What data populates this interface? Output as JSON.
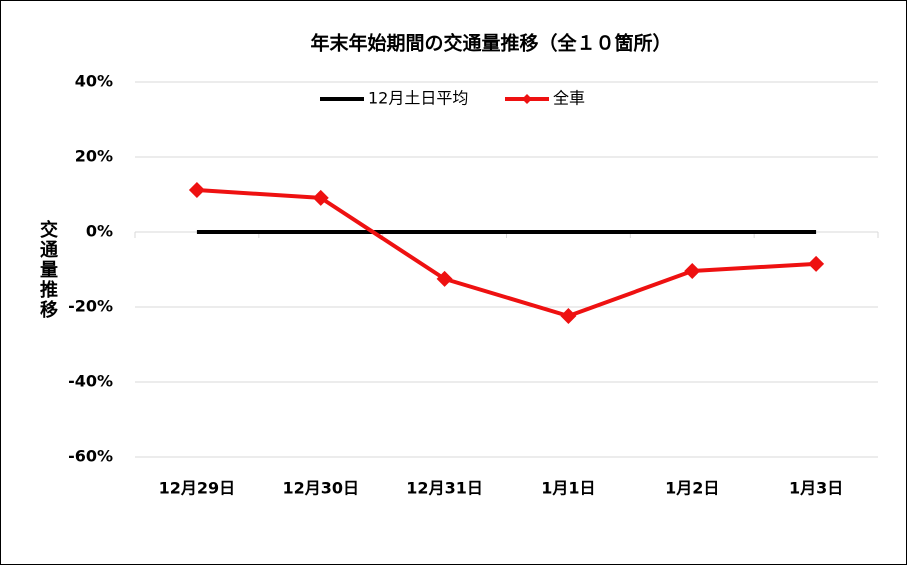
{
  "chart_data": {
    "type": "line",
    "title": "年末年始期間の交通量推移（全１０箇所）",
    "y_label": "交通量推移",
    "categories": [
      "12月29日",
      "12月30日",
      "12月31日",
      "1月1日",
      "1月2日",
      "1月3日"
    ],
    "series": [
      {
        "name": "12月土日平均",
        "color": "#000000",
        "values": [
          0,
          0,
          0,
          0,
          0,
          0
        ],
        "marker": false
      },
      {
        "name": "全車",
        "color": "#ee1111",
        "values": [
          11.2,
          9.1,
          -12.5,
          -22.4,
          -10.4,
          -8.5
        ],
        "marker": true
      }
    ],
    "ylim": [
      -60,
      40
    ],
    "yticks": [
      {
        "value": -60,
        "label": "-60%"
      },
      {
        "value": -40,
        "label": "-40%"
      },
      {
        "value": -20,
        "label": "-20%"
      },
      {
        "value": 0,
        "label": "0%"
      },
      {
        "value": 20,
        "label": "20%"
      },
      {
        "value": 40,
        "label": "40%"
      }
    ],
    "grid": true
  }
}
